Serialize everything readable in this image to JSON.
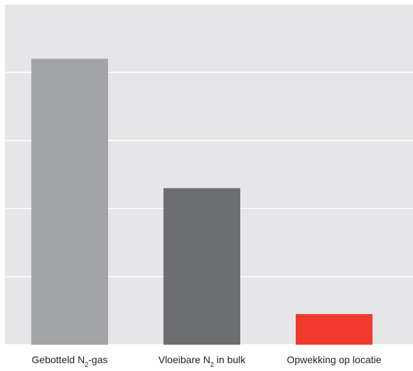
{
  "chart_data": {
    "type": "bar",
    "categories": [
      {
        "pre": "Gebotteld N",
        "sub": "2",
        "post": "-gas"
      },
      {
        "pre": "Vloeibare N",
        "sub": "2",
        "post": " in bulk"
      },
      {
        "pre": "Opwekking op locatie",
        "sub": "",
        "post": ""
      }
    ],
    "values": [
      4.2,
      2.3,
      0.45
    ],
    "ylim": [
      0,
      5
    ],
    "grid": true,
    "legend": "none",
    "title": "",
    "xlabel": "",
    "ylabel": ""
  },
  "colors": {
    "plot_background": "#e6e6e8",
    "gridline": "#ffffff",
    "bars": [
      "#a3a4a6",
      "#6d6e71",
      "#ef3a2d"
    ]
  }
}
